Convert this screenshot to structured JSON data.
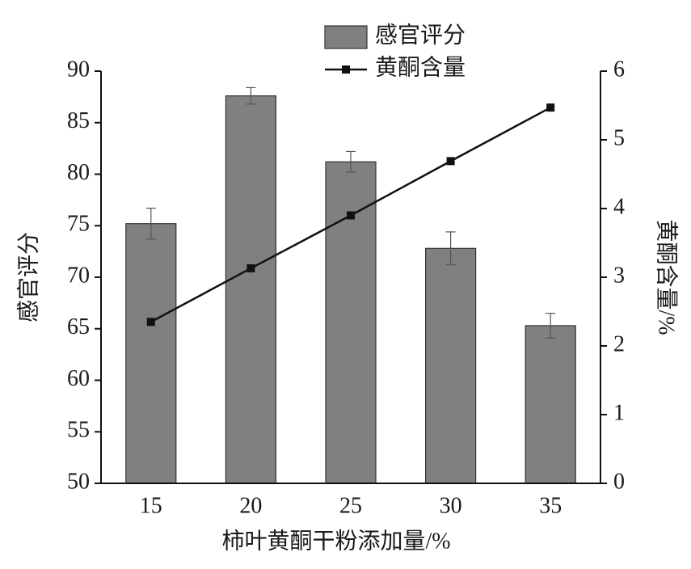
{
  "chart_data": {
    "type": "bar-line",
    "x_label": "柿叶黄酮干粉添加量/%",
    "y_label": "感官评分",
    "y2_label": "黄酮含量/%",
    "categories": [
      "15",
      "20",
      "25",
      "30",
      "35"
    ],
    "ylim": [
      50,
      90
    ],
    "yticks": [
      50,
      55,
      60,
      65,
      70,
      75,
      80,
      85,
      90
    ],
    "y2lim": [
      0,
      6
    ],
    "y2ticks": [
      0,
      1,
      2,
      3,
      4,
      5,
      6
    ],
    "series": [
      {
        "name": "感官评分",
        "type": "bar",
        "color": "#808080",
        "values": [
          75.2,
          87.6,
          81.2,
          72.8,
          65.3
        ],
        "errors": [
          1.5,
          0.8,
          1.0,
          1.6,
          1.2
        ]
      },
      {
        "name": "黄酮含量",
        "type": "line",
        "axis": "y2",
        "color": "#111111",
        "values": [
          2.35,
          3.13,
          3.9,
          4.69,
          5.47
        ]
      }
    ],
    "legend": "top"
  }
}
